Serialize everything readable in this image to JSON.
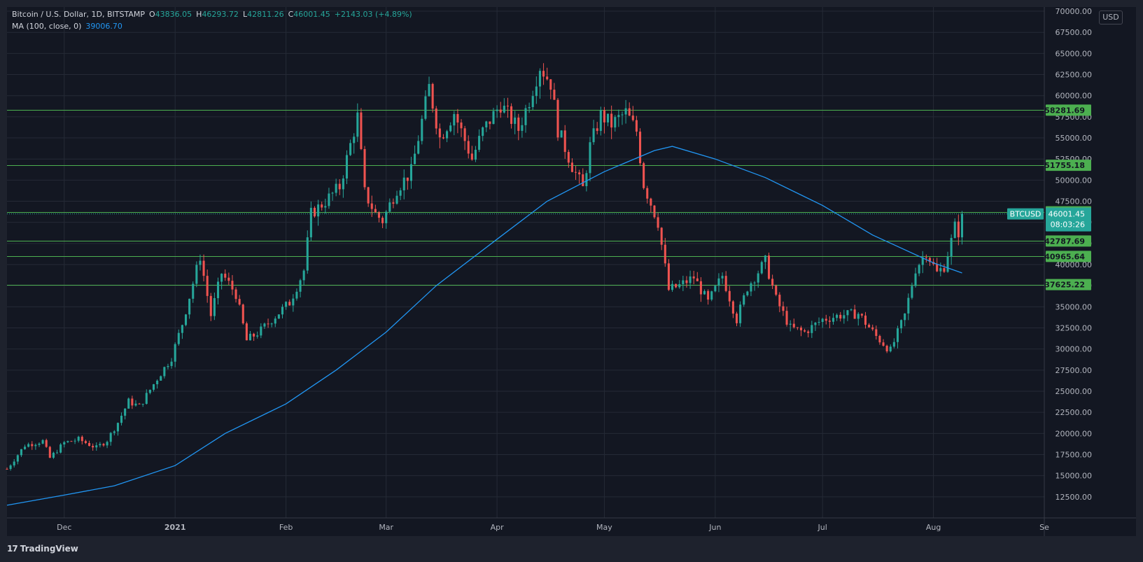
{
  "legend": {
    "title": "Bitcoin / U.S. Dollar, 1D, BITSTAMP",
    "o_label": "O",
    "o_value": "43836.05",
    "h_label": "H",
    "h_value": "46293.72",
    "l_label": "L",
    "l_value": "42811.26",
    "c_label": "C",
    "c_value": "46001.45",
    "change": "+2143.03 (+4.89%)",
    "ma_label": "MA (100, close, 0)",
    "ma_value": "39006.70"
  },
  "currency_button": "USD",
  "footer": {
    "logo": "17",
    "brand": "TradingView"
  },
  "colors": {
    "background": "#131722",
    "grid": "#252a36",
    "up": "#26a69a",
    "down": "#ef5350",
    "ma": "#2196f3",
    "level": "#4caf50",
    "price_tag": "#26a69a"
  },
  "chart_data": {
    "type": "candlestick",
    "symbol": "BTCUSD",
    "y_ticks": [
      "12500.00",
      "15000.00",
      "17500.00",
      "20000.00",
      "22500.00",
      "25000.00",
      "27500.00",
      "30000.00",
      "32500.00",
      "35000.00",
      "37500.00",
      "40000.00",
      "42500.00",
      "45000.00",
      "47500.00",
      "50000.00",
      "52500.00",
      "55000.00",
      "57500.00",
      "60000.00",
      "62500.00",
      "65000.00",
      "67500.00",
      "70000.00"
    ],
    "ylim": [
      10000,
      70500
    ],
    "x_range": [
      "2020-11-15",
      "2021-09-01"
    ],
    "x_ticks": [
      {
        "label": "Dec",
        "date": "2020-12-01"
      },
      {
        "label": "2021",
        "date": "2021-01-01"
      },
      {
        "label": "Feb",
        "date": "2021-02-01"
      },
      {
        "label": "Mar",
        "date": "2021-03-01"
      },
      {
        "label": "Apr",
        "date": "2021-04-01"
      },
      {
        "label": "May",
        "date": "2021-05-01"
      },
      {
        "label": "Jun",
        "date": "2021-06-01"
      },
      {
        "label": "Jul",
        "date": "2021-07-01"
      },
      {
        "label": "Aug",
        "date": "2021-08-01"
      },
      {
        "label": "Se",
        "date": "2021-09-01"
      }
    ],
    "levels": [
      "58281.69",
      "51755.18",
      "46249.58",
      "42787.69",
      "40965.64",
      "37625.22"
    ],
    "last_price": "46001.45",
    "last_price_value": 46001.45,
    "countdown": "08:03:26",
    "close_path": [
      [
        "2020-11-15",
        15800
      ],
      [
        "2020-11-20",
        18600
      ],
      [
        "2020-11-25",
        19100
      ],
      [
        "2020-11-27",
        17100
      ],
      [
        "2020-12-01",
        18900
      ],
      [
        "2020-12-05",
        19300
      ],
      [
        "2020-12-10",
        18300
      ],
      [
        "2020-12-13",
        19200
      ],
      [
        "2020-12-16",
        21300
      ],
      [
        "2020-12-19",
        23800
      ],
      [
        "2020-12-22",
        23200
      ],
      [
        "2020-12-27",
        26500
      ],
      [
        "2020-12-31",
        29000
      ],
      [
        "2021-01-03",
        33000
      ],
      [
        "2021-01-08",
        41000
      ],
      [
        "2021-01-11",
        34000
      ],
      [
        "2021-01-14",
        39000
      ],
      [
        "2021-01-18",
        36500
      ],
      [
        "2021-01-21",
        31000
      ],
      [
        "2021-01-25",
        32200
      ],
      [
        "2021-01-28",
        33500
      ],
      [
        "2021-02-02",
        35500
      ],
      [
        "2021-02-06",
        39300
      ],
      [
        "2021-02-08",
        46000
      ],
      [
        "2021-02-12",
        47500
      ],
      [
        "2021-02-16",
        49200
      ],
      [
        "2021-02-21",
        57500
      ],
      [
        "2021-02-23",
        48500
      ],
      [
        "2021-02-26",
        46000
      ],
      [
        "2021-02-28",
        45200
      ],
      [
        "2021-03-04",
        49000
      ],
      [
        "2021-03-08",
        51000
      ],
      [
        "2021-03-13",
        61000
      ],
      [
        "2021-03-16",
        55000
      ],
      [
        "2021-03-20",
        58000
      ],
      [
        "2021-03-25",
        52500
      ],
      [
        "2021-03-28",
        55800
      ],
      [
        "2021-04-02",
        59000
      ],
      [
        "2021-04-07",
        56000
      ],
      [
        "2021-04-10",
        59500
      ],
      [
        "2021-04-13",
        63500
      ],
      [
        "2021-04-16",
        61500
      ],
      [
        "2021-04-18",
        56000
      ],
      [
        "2021-04-22",
        51700
      ],
      [
        "2021-04-25",
        49000
      ],
      [
        "2021-04-27",
        54000
      ],
      [
        "2021-04-30",
        57700
      ],
      [
        "2021-05-03",
        56600
      ],
      [
        "2021-05-07",
        58000
      ],
      [
        "2021-05-10",
        55800
      ],
      [
        "2021-05-12",
        49500
      ],
      [
        "2021-05-16",
        45000
      ],
      [
        "2021-05-19",
        37000
      ],
      [
        "2021-05-22",
        37500
      ],
      [
        "2021-05-26",
        38500
      ],
      [
        "2021-05-30",
        35500
      ],
      [
        "2021-06-03",
        38700
      ],
      [
        "2021-06-07",
        33500
      ],
      [
        "2021-06-10",
        37300
      ],
      [
        "2021-06-15",
        40400
      ],
      [
        "2021-06-18",
        35900
      ],
      [
        "2021-06-22",
        32500
      ],
      [
        "2021-06-26",
        32000
      ],
      [
        "2021-07-01",
        33500
      ],
      [
        "2021-07-06",
        34000
      ],
      [
        "2021-07-11",
        34200
      ],
      [
        "2021-07-16",
        31500
      ],
      [
        "2021-07-20",
        29800
      ],
      [
        "2021-07-24",
        34000
      ],
      [
        "2021-07-27",
        39500
      ],
      [
        "2021-07-30",
        41500
      ],
      [
        "2021-08-02",
        39000
      ],
      [
        "2021-08-04",
        39800
      ],
      [
        "2021-08-06",
        42800
      ],
      [
        "2021-08-07",
        44500
      ],
      [
        "2021-08-08",
        43836.05
      ],
      [
        "2021-08-09",
        46001.45
      ]
    ],
    "ma_100": [
      [
        "2020-11-15",
        11500
      ],
      [
        "2020-12-01",
        12700
      ],
      [
        "2020-12-15",
        13800
      ],
      [
        "2021-01-01",
        16200
      ],
      [
        "2021-01-15",
        20000
      ],
      [
        "2021-02-01",
        23500
      ],
      [
        "2021-02-15",
        27500
      ],
      [
        "2021-03-01",
        32000
      ],
      [
        "2021-03-15",
        37500
      ],
      [
        "2021-04-01",
        43000
      ],
      [
        "2021-04-15",
        47500
      ],
      [
        "2021-05-01",
        51000
      ],
      [
        "2021-05-15",
        53500
      ],
      [
        "2021-05-20",
        54000
      ],
      [
        "2021-06-01",
        52500
      ],
      [
        "2021-06-15",
        50300
      ],
      [
        "2021-07-01",
        47000
      ],
      [
        "2021-07-15",
        43500
      ],
      [
        "2021-08-01",
        40200
      ],
      [
        "2021-08-09",
        39006.7
      ]
    ]
  }
}
